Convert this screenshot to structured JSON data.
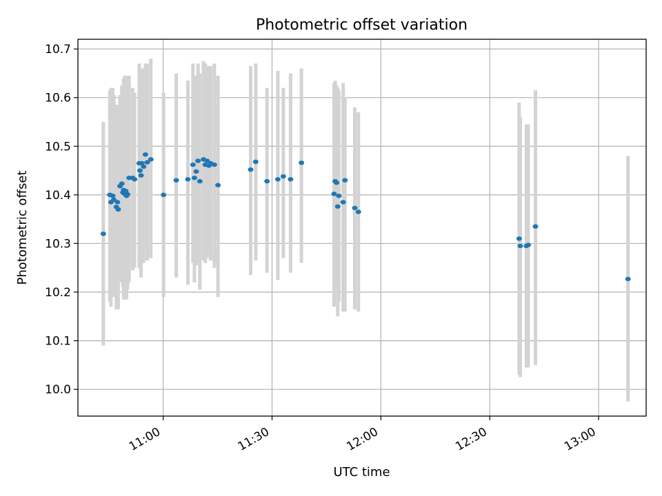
{
  "chart_data": {
    "type": "scatter",
    "title": "Photometric offset variation",
    "xlabel": "UTC time",
    "ylabel": "Photometric offset",
    "x_ticks": [
      "11:00",
      "11:30",
      "12:00",
      "12:30",
      "13:00"
    ],
    "x_tick_minutes": [
      660,
      690,
      720,
      750,
      780
    ],
    "xlim_minutes": [
      636.5,
      793.1
    ],
    "ylim": [
      9.945,
      10.72
    ],
    "y_ticks": [
      "10.0",
      "10.1",
      "10.2",
      "10.3",
      "10.4",
      "10.5",
      "10.6",
      "10.7"
    ],
    "y_tick_values": [
      10.0,
      10.1,
      10.2,
      10.3,
      10.4,
      10.5,
      10.6,
      10.7
    ],
    "grid": true,
    "colors": {
      "points": "#1f77b4",
      "error_bars": "#d3d3d3"
    },
    "series": [
      {
        "x": [
          643.5,
          645.3,
          645.6,
          646.1,
          646.4,
          647.1,
          647.4,
          647.6,
          648.1,
          648.6,
          648.9,
          649.1,
          649.4,
          649.7,
          649.9,
          650.2,
          650.6,
          651.6,
          652.1,
          653.4,
          653.6,
          653.9,
          654.1,
          654.6,
          655.1,
          655.6,
          656.6,
          660.1,
          663.6,
          666.8,
          668.2,
          668.6,
          669.1,
          669.6,
          670.1,
          671.1,
          671.6,
          672.1,
          672.6,
          673.1,
          674.1,
          675.1,
          684.1,
          685.5,
          688.6,
          691.6,
          693.1,
          695.1,
          698.1,
          707.1,
          707.4,
          707.8,
          708.1,
          708.4,
          709.6,
          710.1,
          712.8,
          713.8,
          758.1,
          758.4,
          760.1,
          760.6,
          762.6,
          788.1
        ],
        "y": [
          10.32,
          10.4,
          10.385,
          10.398,
          10.39,
          10.375,
          10.385,
          10.37,
          10.418,
          10.423,
          10.405,
          10.41,
          10.402,
          10.408,
          10.398,
          10.401,
          10.435,
          10.435,
          10.432,
          10.465,
          10.45,
          10.44,
          10.465,
          10.458,
          10.483,
          10.467,
          10.473,
          10.4,
          10.43,
          10.432,
          10.462,
          10.435,
          10.448,
          10.47,
          10.428,
          10.473,
          10.462,
          10.47,
          10.46,
          10.465,
          10.462,
          10.42,
          10.452,
          10.468,
          10.428,
          10.432,
          10.438,
          10.432,
          10.466,
          10.402,
          10.428,
          10.425,
          10.376,
          10.398,
          10.385,
          10.43,
          10.373,
          10.365,
          10.31,
          10.295,
          10.295,
          10.297,
          10.335,
          10.227
        ],
        "y_lower": [
          10.09,
          10.18,
          10.17,
          10.2,
          10.19,
          10.165,
          10.165,
          10.165,
          10.22,
          10.22,
          10.21,
          10.185,
          10.185,
          10.185,
          10.185,
          10.205,
          10.22,
          10.245,
          10.25,
          10.25,
          10.26,
          10.23,
          10.26,
          10.26,
          10.29,
          10.265,
          10.27,
          10.19,
          10.23,
          10.215,
          10.26,
          10.22,
          10.255,
          10.26,
          10.205,
          10.265,
          10.26,
          10.27,
          10.28,
          10.265,
          10.25,
          10.19,
          10.235,
          10.265,
          10.24,
          10.225,
          10.27,
          10.24,
          10.26,
          10.17,
          10.215,
          10.21,
          10.15,
          10.18,
          10.16,
          10.16,
          10.165,
          10.16,
          10.03,
          10.025,
          10.045,
          10.045,
          10.05,
          9.975
        ],
        "y_upper": [
          10.55,
          10.615,
          10.62,
          10.62,
          10.605,
          10.585,
          10.585,
          10.575,
          10.605,
          10.625,
          10.605,
          10.64,
          10.645,
          10.645,
          10.645,
          10.64,
          10.645,
          10.62,
          10.61,
          10.67,
          10.66,
          10.65,
          10.66,
          10.66,
          10.67,
          10.67,
          10.68,
          10.61,
          10.65,
          10.635,
          10.67,
          10.64,
          10.645,
          10.67,
          10.65,
          10.675,
          10.67,
          10.665,
          10.665,
          10.665,
          10.67,
          10.645,
          10.665,
          10.67,
          10.62,
          10.655,
          10.62,
          10.65,
          10.66,
          10.63,
          10.635,
          10.625,
          10.62,
          10.615,
          10.63,
          10.6,
          10.58,
          10.57,
          10.59,
          10.56,
          10.545,
          10.545,
          10.615,
          10.48
        ]
      }
    ]
  }
}
